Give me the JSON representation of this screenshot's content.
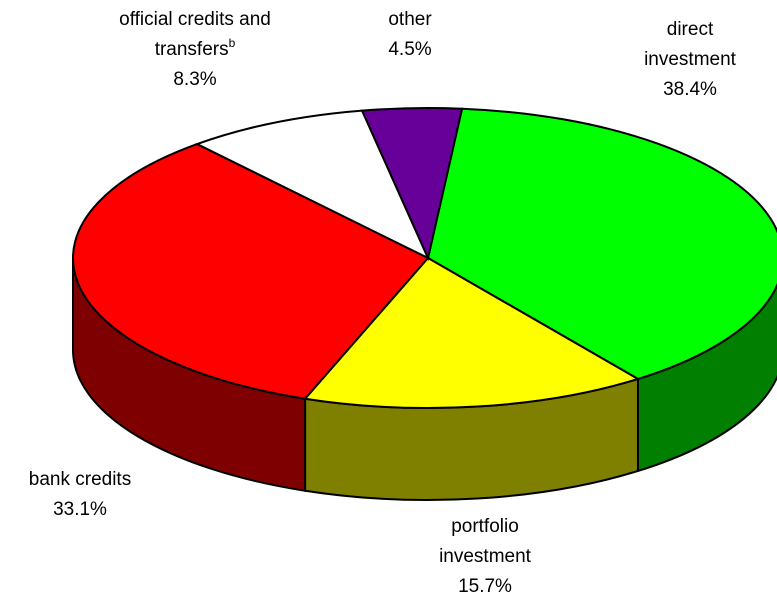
{
  "chart_data": {
    "type": "pie3d",
    "categories": [
      "direct investment",
      "portfolio investment",
      "bank credits",
      "official credits and transfers",
      "other"
    ],
    "label_notes": [
      null,
      null,
      null,
      "b",
      null
    ],
    "values": [
      38.4,
      15.7,
      33.1,
      8.3,
      4.5
    ],
    "value_labels": [
      "38.4%",
      "15.7%",
      "33.1%",
      "8.3%",
      "4.5%"
    ],
    "colors": [
      "#00ff00",
      "#ffff00",
      "#ff0000",
      "#ffffff",
      "#660099"
    ]
  }
}
